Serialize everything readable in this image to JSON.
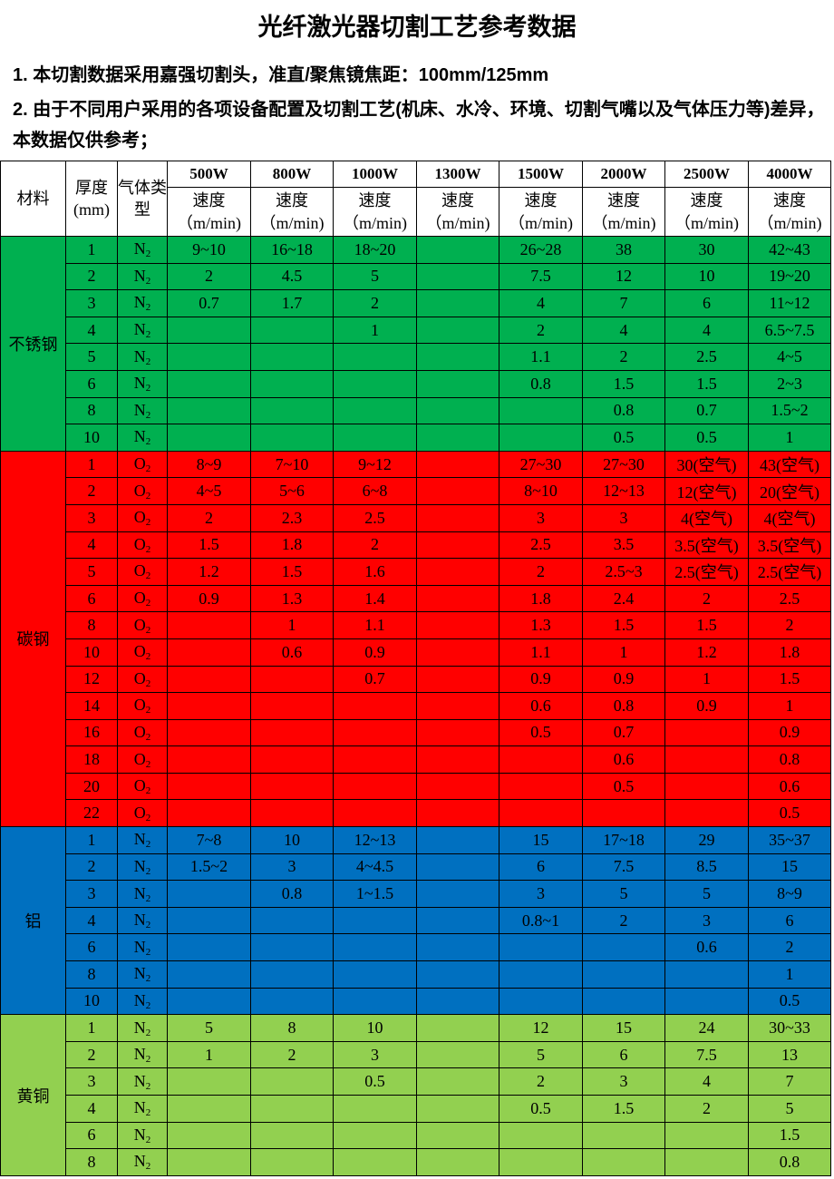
{
  "title": "光纤激光器切割工艺参考数据",
  "notes": [
    "1. 本切割数据采用嘉强切割头，准直/聚焦镜焦距：100mm/125mm",
    "2. 由于不同用户采用的各项设备配置及切割工艺(机床、水冷、环境、切割气嘴以及气体压力等)差异，本数据仅供参考；"
  ],
  "table": {
    "headers": {
      "material": "材料",
      "thickness": "厚度(mm)",
      "gas": "气体类型",
      "speed": "速度",
      "unit": "（m/min)"
    },
    "powers": [
      "500W",
      "800W",
      "1000W",
      "1300W",
      "1500W",
      "2000W",
      "2500W",
      "4000W"
    ],
    "groups": [
      {
        "material": "不锈钢",
        "color": "#00b050",
        "rows": [
          [
            "1",
            "N2",
            [
              "9~10",
              "16~18",
              "18~20",
              "",
              "26~28",
              "38",
              "30",
              "42~43"
            ]
          ],
          [
            "2",
            "N2",
            [
              "2",
              "4.5",
              "5",
              "",
              "7.5",
              "12",
              "10",
              "19~20"
            ]
          ],
          [
            "3",
            "N2",
            [
              "0.7",
              "1.7",
              "2",
              "",
              "4",
              "7",
              "6",
              "11~12"
            ]
          ],
          [
            "4",
            "N2",
            [
              "",
              "",
              "1",
              "",
              "2",
              "4",
              "4",
              "6.5~7.5"
            ]
          ],
          [
            "5",
            "N2",
            [
              "",
              "",
              "",
              "",
              "1.1",
              "2",
              "2.5",
              "4~5"
            ]
          ],
          [
            "6",
            "N2",
            [
              "",
              "",
              "",
              "",
              "0.8",
              "1.5",
              "1.5",
              "2~3"
            ]
          ],
          [
            "8",
            "N2",
            [
              "",
              "",
              "",
              "",
              "",
              "0.8",
              "0.7",
              "1.5~2"
            ]
          ],
          [
            "10",
            "N2",
            [
              "",
              "",
              "",
              "",
              "",
              "0.5",
              "0.5",
              "1"
            ]
          ]
        ]
      },
      {
        "material": "碳钢",
        "color": "#ff0000",
        "rows": [
          [
            "1",
            "O2",
            [
              "8~9",
              "7~10",
              "9~12",
              "",
              "27~30",
              "27~30",
              "30(空气)",
              "43(空气)"
            ]
          ],
          [
            "2",
            "O2",
            [
              "4~5",
              "5~6",
              "6~8",
              "",
              "8~10",
              "12~13",
              "12(空气)",
              "20(空气)"
            ]
          ],
          [
            "3",
            "O2",
            [
              "2",
              "2.3",
              "2.5",
              "",
              "3",
              "3",
              "4(空气)",
              "4(空气)"
            ]
          ],
          [
            "4",
            "O2",
            [
              "1.5",
              "1.8",
              "2",
              "",
              "2.5",
              "3.5",
              "3.5(空气)",
              "3.5(空气)"
            ]
          ],
          [
            "5",
            "O2",
            [
              "1.2",
              "1.5",
              "1.6",
              "",
              "2",
              "2.5~3",
              "2.5(空气)",
              "2.5(空气)"
            ]
          ],
          [
            "6",
            "O2",
            [
              "0.9",
              "1.3",
              "1.4",
              "",
              "1.8",
              "2.4",
              "2",
              "2.5"
            ]
          ],
          [
            "8",
            "O2",
            [
              "",
              "1",
              "1.1",
              "",
              "1.3",
              "1.5",
              "1.5",
              "2"
            ]
          ],
          [
            "10",
            "O2",
            [
              "",
              "0.6",
              "0.9",
              "",
              "1.1",
              "1",
              "1.2",
              "1.8"
            ]
          ],
          [
            "12",
            "O2",
            [
              "",
              "",
              "0.7",
              "",
              "0.9",
              "0.9",
              "1",
              "1.5"
            ]
          ],
          [
            "14",
            "O2",
            [
              "",
              "",
              "",
              "",
              "0.6",
              "0.8",
              "0.9",
              "1"
            ]
          ],
          [
            "16",
            "O2",
            [
              "",
              "",
              "",
              "",
              "0.5",
              "0.7",
              "",
              "0.9"
            ]
          ],
          [
            "18",
            "O2",
            [
              "",
              "",
              "",
              "",
              "",
              "0.6",
              "",
              "0.8"
            ]
          ],
          [
            "20",
            "O2",
            [
              "",
              "",
              "",
              "",
              "",
              "0.5",
              "",
              "0.6"
            ]
          ],
          [
            "22",
            "O2",
            [
              "",
              "",
              "",
              "",
              "",
              "",
              "",
              "0.5"
            ]
          ]
        ]
      },
      {
        "material": "铝",
        "color": "#0070c0",
        "rows": [
          [
            "1",
            "N2",
            [
              "7~8",
              "10",
              "12~13",
              "",
              "15",
              "17~18",
              "29",
              "35~37"
            ]
          ],
          [
            "2",
            "N2",
            [
              "1.5~2",
              "3",
              "4~4.5",
              "",
              "6",
              "7.5",
              "8.5",
              "15"
            ]
          ],
          [
            "3",
            "N2",
            [
              "",
              "0.8",
              "1~1.5",
              "",
              "3",
              "5",
              "5",
              "8~9"
            ]
          ],
          [
            "4",
            "N2",
            [
              "",
              "",
              "",
              "",
              "0.8~1",
              "2",
              "3",
              "6"
            ]
          ],
          [
            "6",
            "N2",
            [
              "",
              "",
              "",
              "",
              "",
              "",
              "0.6",
              "2"
            ]
          ],
          [
            "8",
            "N2",
            [
              "",
              "",
              "",
              "",
              "",
              "",
              "",
              "1"
            ]
          ],
          [
            "10",
            "N2",
            [
              "",
              "",
              "",
              "",
              "",
              "",
              "",
              "0.5"
            ]
          ]
        ]
      },
      {
        "material": "黄铜",
        "color": "#92d050",
        "rows": [
          [
            "1",
            "N2",
            [
              "5",
              "8",
              "10",
              "",
              "12",
              "15",
              "24",
              "30~33"
            ]
          ],
          [
            "2",
            "N2",
            [
              "1",
              "2",
              "3",
              "",
              "5",
              "6",
              "7.5",
              "13"
            ]
          ],
          [
            "3",
            "N2",
            [
              "",
              "",
              "0.5",
              "",
              "2",
              "3",
              "4",
              "7"
            ]
          ],
          [
            "4",
            "N2",
            [
              "",
              "",
              "",
              "",
              "0.5",
              "1.5",
              "2",
              "5"
            ]
          ],
          [
            "6",
            "N2",
            [
              "",
              "",
              "",
              "",
              "",
              "",
              "",
              "1.5"
            ]
          ],
          [
            "8",
            "N2",
            [
              "",
              "",
              "",
              "",
              "",
              "",
              "",
              "0.8"
            ]
          ]
        ]
      }
    ]
  }
}
